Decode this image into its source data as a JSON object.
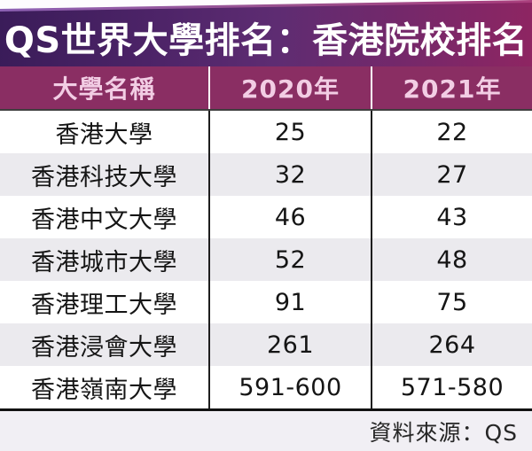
{
  "banner": {
    "title": "QS世界大學排名：香港院校排名"
  },
  "table": {
    "headers": [
      "大學名稱",
      "2020年",
      "2021年"
    ],
    "rows": [
      {
        "name": "香港大學",
        "y2020": "25",
        "y2021": "22"
      },
      {
        "name": "香港科技大學",
        "y2020": "32",
        "y2021": "27"
      },
      {
        "name": "香港中文大學",
        "y2020": "46",
        "y2021": "43"
      },
      {
        "name": "香港城市大學",
        "y2020": "52",
        "y2021": "48"
      },
      {
        "name": "香港理工大學",
        "y2020": "91",
        "y2021": "75"
      },
      {
        "name": "香港浸會大學",
        "y2020": "261",
        "y2021": "264"
      },
      {
        "name": "香港嶺南大學",
        "y2020": "591-600",
        "y2021": "571-580"
      }
    ]
  },
  "footer": {
    "source": "資料來源：QS"
  },
  "colors": {
    "banner_gradient_left": "#3a1c59",
    "banner_gradient_right": "#8e2562",
    "banner_top_edge": "#8d62b5",
    "header_bg": "#8a2e63",
    "header_text": "#f2cde4",
    "row_alt_bg": "#ebeaee",
    "body_text": "#151515",
    "divider_light": "#ffffff",
    "divider_dark": "#1e1e1e",
    "bottom_rule": "#121212",
    "footer_bg": "#f1eff4"
  },
  "chart_data": {
    "type": "table",
    "title": "QS世界大學排名：香港院校排名",
    "columns": [
      "大學名稱",
      "2020年",
      "2021年"
    ],
    "rows": [
      [
        "香港大學",
        "25",
        "22"
      ],
      [
        "香港科技大學",
        "32",
        "27"
      ],
      [
        "香港中文大學",
        "46",
        "43"
      ],
      [
        "香港城市大學",
        "52",
        "48"
      ],
      [
        "香港理工大學",
        "91",
        "75"
      ],
      [
        "香港浸會大學",
        "261",
        "264"
      ],
      [
        "香港嶺南大學",
        "591-600",
        "571-580"
      ]
    ],
    "source": "資料來源：QS"
  }
}
